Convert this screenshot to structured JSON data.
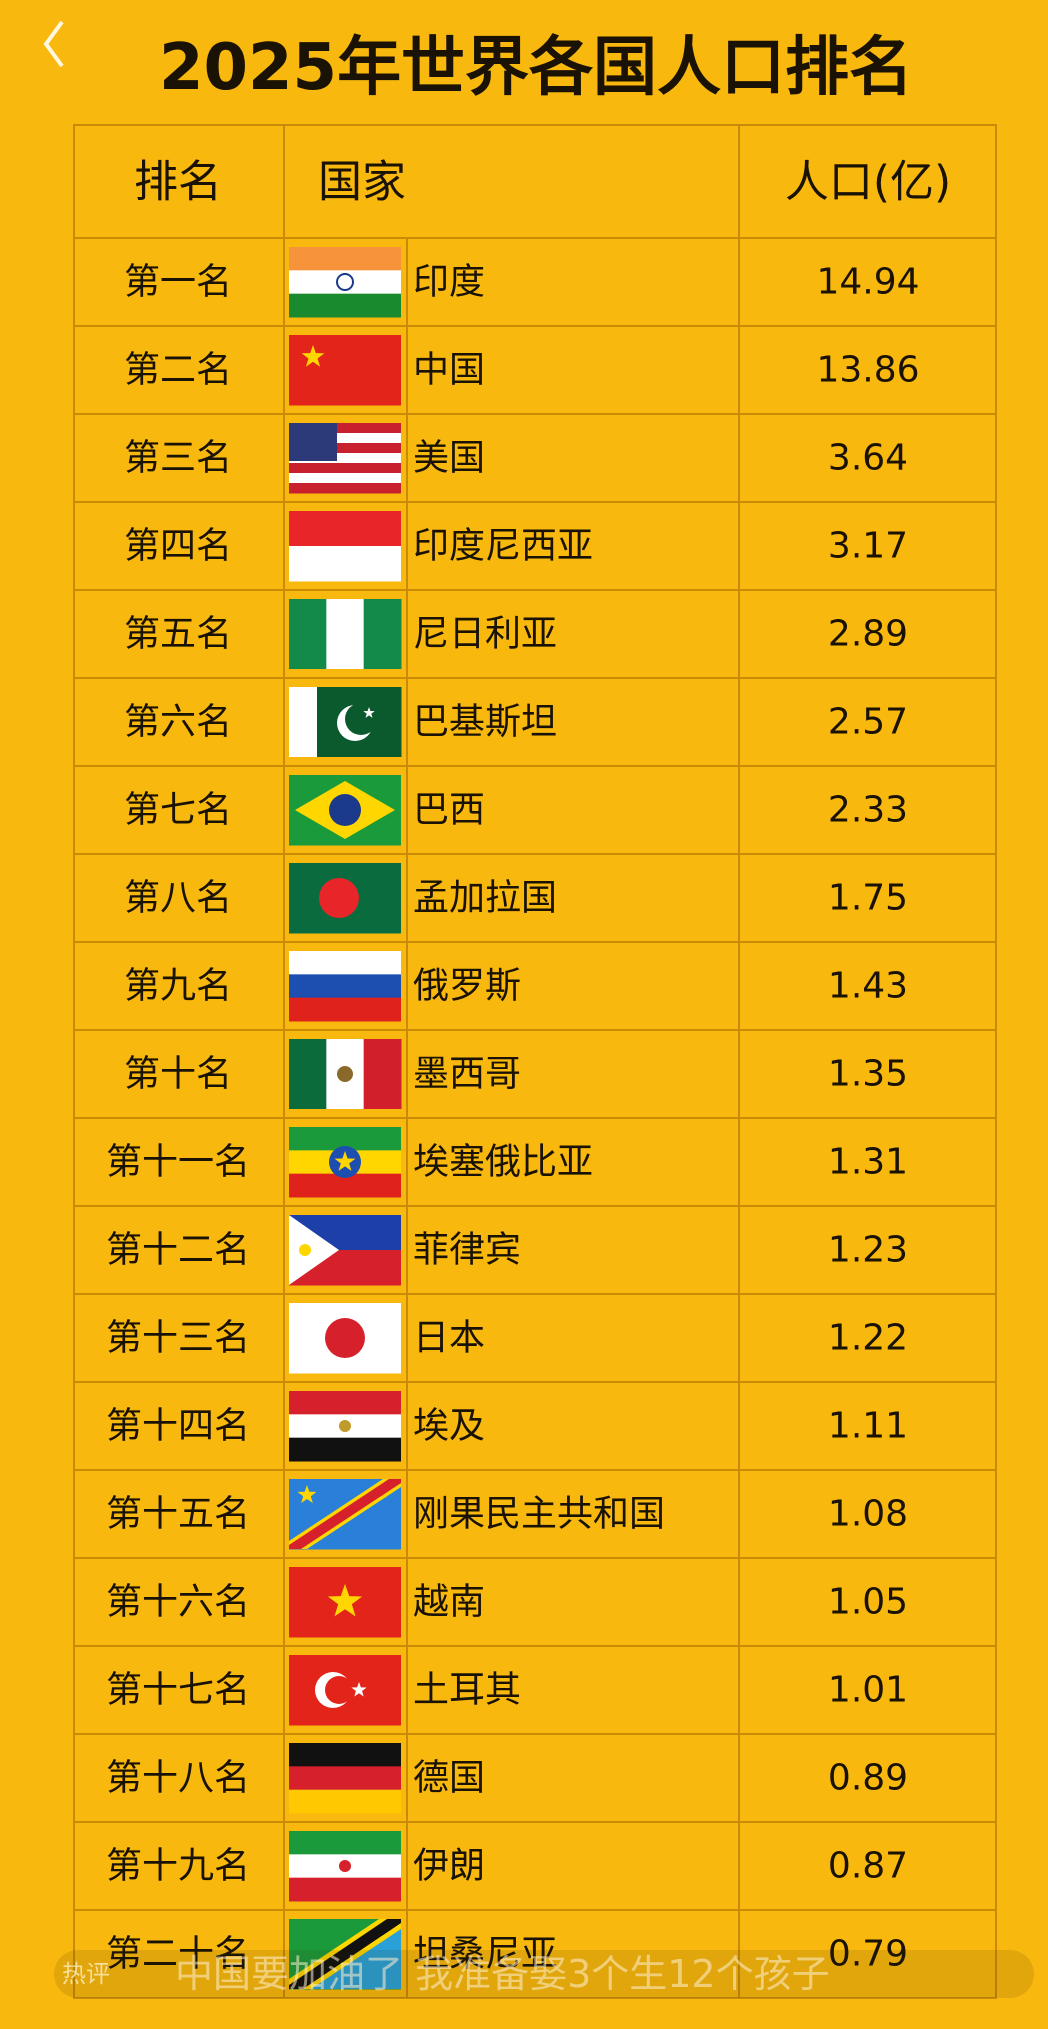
{
  "title": "2025年世界各国人口排名",
  "table": {
    "header": [
      "排名",
      "国家",
      "人口(亿)"
    ],
    "rows": [
      [
        "第一名",
        "印度",
        "14.94"
      ],
      [
        "第二名",
        "中国",
        "13.86"
      ],
      [
        "第三名",
        "美国",
        "3.64"
      ],
      [
        "第四名",
        "印度尼西亚",
        "3.17"
      ],
      [
        "第五名",
        "尼日利亚",
        "2.89"
      ],
      [
        "第六名",
        "巴基斯坦",
        "2.57"
      ],
      [
        "第七名",
        "巴西",
        "2.33"
      ],
      [
        "第八名",
        "孟加拉国",
        "1.75"
      ],
      [
        "第九名",
        "俄罗斯",
        "1.43"
      ],
      [
        "第十名",
        "墨西哥",
        "1.35"
      ],
      [
        "第十一名",
        "埃塞俄比亚",
        "1.31"
      ],
      [
        "第十二名",
        "菲律宾",
        "1.23"
      ],
      [
        "第十三名",
        "日本",
        "1.22"
      ],
      [
        "第十四名",
        "埃及",
        "1.11"
      ],
      [
        "第十五名",
        "刚果民主共和国",
        "1.08"
      ],
      [
        "第十六名",
        "越南",
        "1.05"
      ],
      [
        "第十七名",
        "土耳其",
        "1.01"
      ],
      [
        "第十八名",
        "德国",
        "0.89"
      ],
      [
        "第十九名",
        "伊朗",
        "0.87"
      ],
      [
        "第二十名",
        "坦桑尼亚",
        "0.79"
      ]
    ]
  },
  "comment": {
    "tag": "热评",
    "text": "中国要加油了 我准备娶3个生12个孩子"
  }
}
